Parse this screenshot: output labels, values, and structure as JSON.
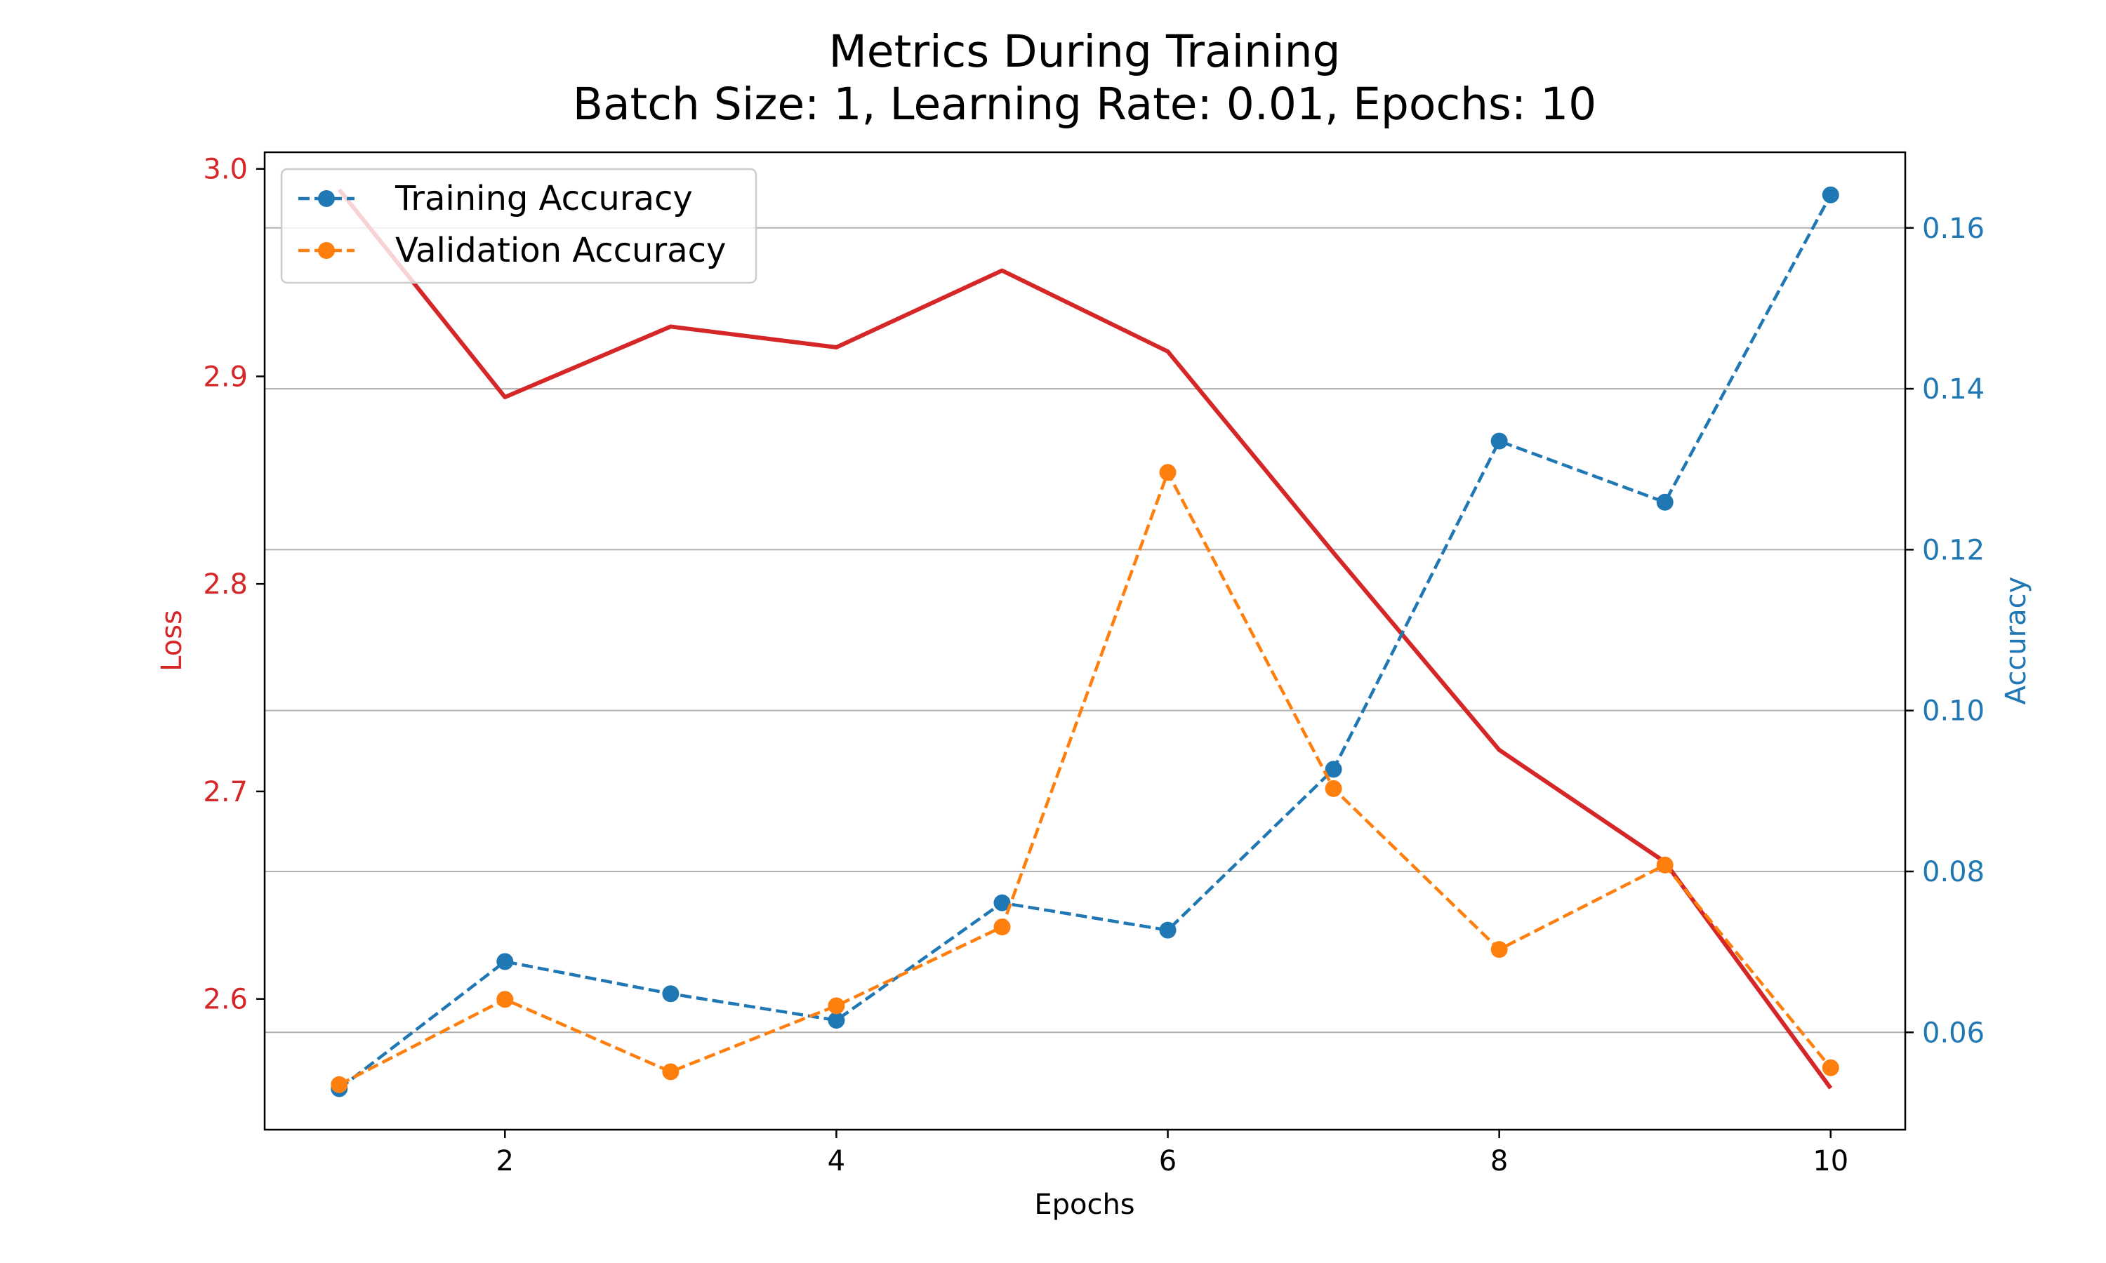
{
  "chart_data": {
    "type": "line",
    "title": "Metrics During Training",
    "subtitle": "Batch Size: 1, Learning Rate: 0.01, Epochs: 10",
    "xlabel": "Epochs",
    "ylabel_left": "Loss",
    "ylabel_right": "Accuracy",
    "x": [
      1,
      2,
      3,
      4,
      5,
      6,
      7,
      8,
      9,
      10
    ],
    "xlim": [
      0.55,
      10.45
    ],
    "x_ticks": [
      2,
      4,
      6,
      8,
      10
    ],
    "ylim_left": [
      2.537,
      3.008
    ],
    "y_ticks_left": [
      2.6,
      2.7,
      2.8,
      2.9,
      3.0
    ],
    "y_tick_labels_left": [
      "2.6",
      "2.7",
      "2.8",
      "2.9",
      "3.0"
    ],
    "ylim_right": [
      0.0479,
      0.1694
    ],
    "y_ticks_right": [
      0.06,
      0.08,
      0.1,
      0.12,
      0.14,
      0.16
    ],
    "y_tick_labels_right": [
      "0.06",
      "0.08",
      "0.10",
      "0.12",
      "0.14",
      "0.16"
    ],
    "grid": "horizontal (right axis)",
    "legend_position": "upper-left",
    "colors": {
      "loss": "#d62728",
      "training": "#1f77b4",
      "validation": "#ff7f0e",
      "grid": "#b0b0b0",
      "axes": "#000000"
    },
    "series": [
      {
        "key": "loss",
        "axis": "left",
        "style": "solid",
        "values": [
          2.99,
          2.89,
          2.924,
          2.914,
          2.951,
          2.912,
          2.815,
          2.72,
          2.666,
          2.557
        ]
      },
      {
        "key": "training",
        "name": "Training Accuracy",
        "axis": "right",
        "style": "dashed",
        "values": [
          0.053,
          0.0688,
          0.0648,
          0.0615,
          0.0761,
          0.0727,
          0.0927,
          0.1335,
          0.1259,
          0.1641
        ]
      },
      {
        "key": "validation",
        "name": "Validation Accuracy",
        "axis": "right",
        "style": "dashed",
        "values": [
          0.0535,
          0.0641,
          0.0551,
          0.0633,
          0.0731,
          0.1296,
          0.0903,
          0.0703,
          0.0808,
          0.0556
        ]
      }
    ]
  }
}
